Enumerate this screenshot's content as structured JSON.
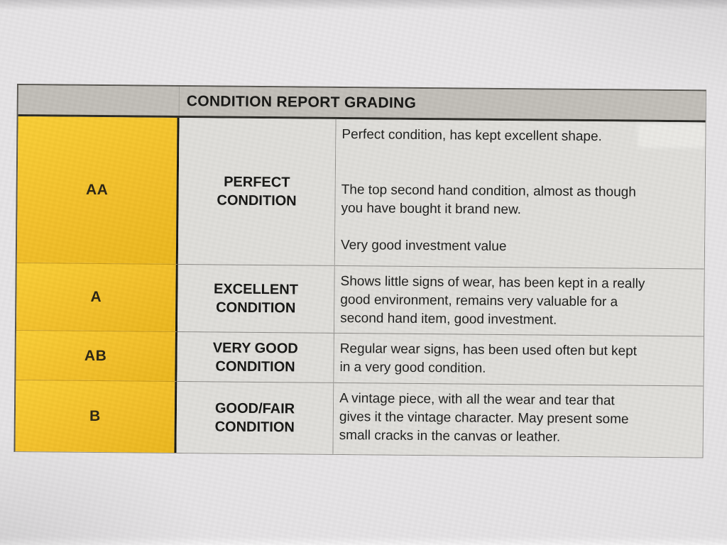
{
  "table": {
    "title": "CONDITION REPORT GRADING",
    "rows": [
      {
        "grade": "AA",
        "condition": "PERFECT\nCONDITION",
        "paragraphs": [
          "Perfect condition, has kept excellent shape.",
          "The top second hand condition, almost as though\nyou have bought it brand new.",
          "Very good investment value"
        ]
      },
      {
        "grade": "A",
        "condition": "EXCELLENT\nCONDITION",
        "paragraphs": [
          "Shows little signs of wear, has been kept in a really\ngood environment, remains very valuable for a\nsecond hand item, good investment."
        ]
      },
      {
        "grade": "AB",
        "condition": "VERY GOOD\nCONDITION",
        "paragraphs": [
          "Regular wear signs, has been used often but kept\nin a very good condition."
        ]
      },
      {
        "grade": "B",
        "condition": "GOOD/FAIR\nCONDITION",
        "paragraphs": [
          "A vintage piece, with all the wear and tear that\ngives it the vintage character. May present some\nsmall cracks in the canvas or leather."
        ]
      }
    ],
    "colors": {
      "grade_column": "#F3C02B",
      "header_bg": "#C1BEB8",
      "cell_bg": "#DFDEDA",
      "paper_bg": "#E5E3E5",
      "text": "#1B1B1A"
    }
  }
}
